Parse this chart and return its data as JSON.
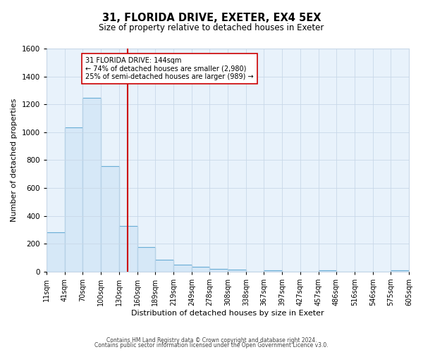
{
  "title": "31, FLORIDA DRIVE, EXETER, EX4 5EX",
  "subtitle": "Size of property relative to detached houses in Exeter",
  "xlabel": "Distribution of detached houses by size in Exeter",
  "ylabel": "Number of detached properties",
  "footer_line1": "Contains HM Land Registry data © Crown copyright and database right 2024.",
  "footer_line2": "Contains public sector information licensed under the Open Government Licence v3.0.",
  "bin_edges": [
    11,
    41,
    70,
    100,
    130,
    160,
    189,
    219,
    249,
    278,
    308,
    338,
    367,
    397,
    427,
    457,
    486,
    516,
    546,
    575,
    605
  ],
  "bin_counts": [
    280,
    1035,
    1245,
    755,
    330,
    175,
    83,
    48,
    35,
    20,
    15,
    0,
    10,
    0,
    0,
    10,
    0,
    0,
    0,
    8
  ],
  "bar_facecolor": "#d6e8f7",
  "bar_edgecolor": "#6aaed6",
  "property_value": 144,
  "vline_color": "#cc0000",
  "annotation_line1": "31 FLORIDA DRIVE: 144sqm",
  "annotation_line2": "← 74% of detached houses are smaller (2,980)",
  "annotation_line3": "25% of semi-detached houses are larger (989) →",
  "annotation_box_edgecolor": "#cc0000",
  "annotation_box_facecolor": "#ffffff",
  "ylim": [
    0,
    1600
  ],
  "yticks": [
    0,
    200,
    400,
    600,
    800,
    1000,
    1200,
    1400,
    1600
  ],
  "tick_labels": [
    "11sqm",
    "41sqm",
    "70sqm",
    "100sqm",
    "130sqm",
    "160sqm",
    "189sqm",
    "219sqm",
    "249sqm",
    "278sqm",
    "308sqm",
    "338sqm",
    "367sqm",
    "397sqm",
    "427sqm",
    "457sqm",
    "486sqm",
    "516sqm",
    "546sqm",
    "575sqm",
    "605sqm"
  ],
  "grid_color": "#c8d8e8",
  "background_color": "#e8f2fb",
  "title_fontsize": 10.5,
  "subtitle_fontsize": 8.5,
  "axis_label_fontsize": 8,
  "tick_fontsize": 7,
  "annotation_fontsize": 7,
  "footer_fontsize": 5.5
}
